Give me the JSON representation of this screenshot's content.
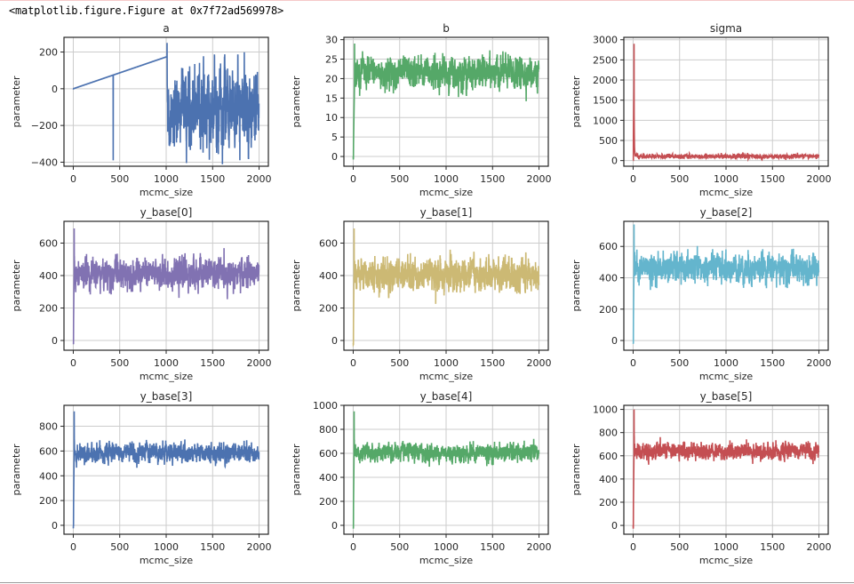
{
  "output_repr": "<matplotlib.figure.Figure at 0x7f72ad569978>",
  "chart_data": [
    {
      "type": "line",
      "title": "a",
      "xlabel": "mcmc_size",
      "ylabel": "parameter",
      "color": "#4c72b0",
      "xlim": [
        -100,
        2100
      ],
      "ylim": [
        -422,
        280
      ],
      "xticks": [
        0,
        500,
        1000,
        1500,
        2000
      ],
      "yticks": [
        -400,
        -200,
        0,
        200
      ],
      "n_samples": 2000,
      "trace": {
        "start": 0,
        "mean": -120,
        "band": [
          -290,
          60
        ],
        "max": {
          "x": 1010,
          "y": 250
        },
        "min": {
          "x": 430,
          "y": -390
        }
      },
      "grid": true
    },
    {
      "type": "line",
      "title": "b",
      "xlabel": "mcmc_size",
      "ylabel": "parameter",
      "color": "#55a868",
      "xlim": [
        -100,
        2100
      ],
      "ylim": [
        -2.5,
        30.6
      ],
      "xticks": [
        0,
        500,
        1000,
        1500,
        2000
      ],
      "yticks": [
        0,
        5,
        10,
        15,
        20,
        25,
        30
      ],
      "n_samples": 2000,
      "trace": {
        "start": -1,
        "mean": 21.5,
        "band": [
          18,
          25
        ],
        "max": {
          "x": 15,
          "y": 29
        },
        "min": {
          "x": 5,
          "y": -1
        }
      },
      "grid": true
    },
    {
      "type": "line",
      "title": "sigma",
      "xlabel": "mcmc_size",
      "ylabel": "parameter",
      "color": "#c44e52",
      "xlim": [
        -100,
        2100
      ],
      "ylim": [
        -140,
        3060
      ],
      "xticks": [
        0,
        500,
        1000,
        1500,
        2000
      ],
      "yticks": [
        0,
        500,
        1000,
        1500,
        2000,
        2500,
        3000
      ],
      "n_samples": 2000,
      "trace": {
        "start": 0,
        "mean": 100,
        "band": [
          60,
          150
        ],
        "max": {
          "x": 10,
          "y": 2900
        },
        "min": {
          "x": 0,
          "y": 0
        }
      },
      "grid": true
    },
    {
      "type": "line",
      "title": "y_base[0]",
      "xlabel": "mcmc_size",
      "ylabel": "parameter",
      "color": "#8172b2",
      "xlim": [
        -100,
        2100
      ],
      "ylim": [
        -60,
        734
      ],
      "xticks": [
        0,
        500,
        1000,
        1500,
        2000
      ],
      "yticks": [
        0,
        200,
        400,
        600
      ],
      "n_samples": 2000,
      "trace": {
        "start": -30,
        "mean": 405,
        "band": [
          330,
          490
        ],
        "max": {
          "x": 10,
          "y": 690
        },
        "min": {
          "x": 5,
          "y": -30
        }
      },
      "grid": true
    },
    {
      "type": "line",
      "title": "y_base[1]",
      "xlabel": "mcmc_size",
      "ylabel": "parameter",
      "color": "#ccb974",
      "xlim": [
        -100,
        2100
      ],
      "ylim": [
        -60,
        734
      ],
      "xticks": [
        0,
        500,
        1000,
        1500,
        2000
      ],
      "yticks": [
        0,
        200,
        400,
        600
      ],
      "n_samples": 2000,
      "trace": {
        "start": -30,
        "mean": 405,
        "band": [
          320,
          490
        ],
        "max": {
          "x": 10,
          "y": 690
        },
        "min": {
          "x": 5,
          "y": -30
        }
      },
      "grid": true
    },
    {
      "type": "line",
      "title": "y_base[2]",
      "xlabel": "mcmc_size",
      "ylabel": "parameter",
      "color": "#64b5cd",
      "xlim": [
        -100,
        2100
      ],
      "ylim": [
        -62,
        760
      ],
      "xticks": [
        0,
        500,
        1000,
        1500,
        2000
      ],
      "yticks": [
        0,
        200,
        400,
        600
      ],
      "n_samples": 2000,
      "trace": {
        "start": -30,
        "mean": 455,
        "band": [
          380,
          540
        ],
        "max": {
          "x": 10,
          "y": 740
        },
        "min": {
          "x": 5,
          "y": -30
        }
      },
      "grid": true
    },
    {
      "type": "line",
      "title": "y_base[3]",
      "xlabel": "mcmc_size",
      "ylabel": "parameter",
      "color": "#4c72b0",
      "xlim": [
        -100,
        2100
      ],
      "ylim": [
        -72,
        969
      ],
      "xticks": [
        0,
        500,
        1000,
        1500,
        2000
      ],
      "yticks": [
        0,
        200,
        400,
        600,
        800
      ],
      "n_samples": 2000,
      "trace": {
        "start": -30,
        "mean": 580,
        "band": [
          520,
          650
        ],
        "max": {
          "x": 10,
          "y": 920
        },
        "min": {
          "x": 5,
          "y": -30
        }
      },
      "grid": true
    },
    {
      "type": "line",
      "title": "y_base[4]",
      "xlabel": "mcmc_size",
      "ylabel": "parameter",
      "color": "#55a868",
      "xlim": [
        -100,
        2100
      ],
      "ylim": [
        -74,
        1000
      ],
      "xticks": [
        0,
        500,
        1000,
        1500,
        2000
      ],
      "yticks": [
        0,
        200,
        400,
        600,
        800,
        1000
      ],
      "n_samples": 2000,
      "trace": {
        "start": -30,
        "mean": 600,
        "band": [
          540,
          670
        ],
        "max": {
          "x": 10,
          "y": 950
        },
        "min": {
          "x": 5,
          "y": -30
        }
      },
      "grid": true
    },
    {
      "type": "line",
      "title": "y_base[5]",
      "xlabel": "mcmc_size",
      "ylabel": "parameter",
      "color": "#c44e52",
      "xlim": [
        -100,
        2100
      ],
      "ylim": [
        -76,
        1035
      ],
      "xticks": [
        0,
        500,
        1000,
        1500,
        2000
      ],
      "yticks": [
        0,
        200,
        400,
        600,
        800,
        1000
      ],
      "n_samples": 2000,
      "trace": {
        "start": -30,
        "mean": 640,
        "band": [
          580,
          700
        ],
        "max": {
          "x": 10,
          "y": 1000
        },
        "min": {
          "x": 5,
          "y": -30
        }
      },
      "grid": true
    }
  ]
}
